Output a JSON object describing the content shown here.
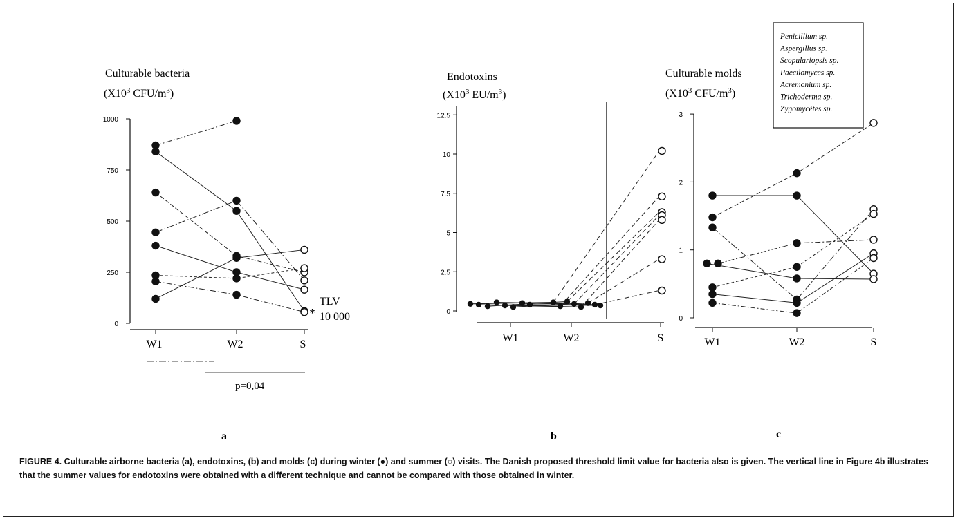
{
  "figure": {
    "caption": "FIGURE 4.   Culturable airborne bacteria (a), endotoxins, (b) and molds (c) during winter (●) and summer (○) visits. The Danish proposed threshold limit value for bacteria also is given. The vertical line in Figure 4b illustrates that the summer values for endotoxins were obtained with a different technique and cannot be compared with those obtained in winter."
  },
  "chart_data": [
    {
      "type": "line",
      "panel_label": "a",
      "title": "Culturable bacteria",
      "ylabel": "(X10³ CFU/m³)",
      "categories": [
        "W1",
        "W2",
        "S"
      ],
      "yticks": [
        "0",
        "250",
        "500",
        "750",
        "1000"
      ],
      "ylim": [
        0,
        1000
      ],
      "series": [
        {
          "values": [
            870,
            990,
            null
          ]
        },
        {
          "values": [
            840,
            550,
            60
          ]
        },
        {
          "values": [
            640,
            330,
            250
          ]
        },
        {
          "values": [
            445,
            600,
            210
          ]
        },
        {
          "values": [
            380,
            250,
            165
          ]
        },
        {
          "values": [
            235,
            220,
            270
          ]
        },
        {
          "values": [
            205,
            140,
            55
          ]
        },
        {
          "values": [
            120,
            320,
            360
          ]
        }
      ],
      "annotations": {
        "tlv_label": "TLV",
        "tlv_value": "10 000",
        "tlv_marker": "*",
        "p_value": "p=0,04"
      }
    },
    {
      "type": "line",
      "panel_label": "b",
      "title": "Endotoxins",
      "ylabel": "(X10³ EU/m³)",
      "categories": [
        "W1",
        "W2",
        "S"
      ],
      "yticks": [
        "0",
        "2.5",
        "5",
        "7.5",
        "10",
        "12.5"
      ],
      "ylim": [
        0,
        12.5
      ],
      "winter_w1": [
        0.45,
        0.4,
        0.3,
        0.55,
        0.35,
        0.25,
        0.5,
        0.4
      ],
      "winter_w2": [
        0.55,
        0.3,
        0.6,
        0.45,
        0.25,
        0.5,
        0.4,
        0.35
      ],
      "summer": [
        10.2,
        7.3,
        6.3,
        6.1,
        5.8,
        3.3,
        1.3
      ],
      "note": "summer values obtained with a different technique"
    },
    {
      "type": "line",
      "panel_label": "c",
      "title": "Culturable molds",
      "ylabel": "(X10³ CFU/m³)",
      "categories": [
        "W1",
        "W2",
        "S"
      ],
      "yticks": [
        "0",
        "1",
        "2",
        "3"
      ],
      "ylim": [
        0,
        3
      ],
      "legend": [
        "Penicillium sp.",
        "Aspergillus sp.",
        "Scopulariopsis sp.",
        "Paecilomyces sp.",
        "Acremonium sp.",
        "Trichoderma sp.",
        "Zygomycètes sp."
      ],
      "series": [
        {
          "values": [
            1.8,
            1.8,
            0.65
          ]
        },
        {
          "values": [
            1.48,
            2.13,
            2.87
          ]
        },
        {
          "values": [
            1.33,
            0.27,
            1.6
          ]
        },
        {
          "values": [
            0.8,
            0.58,
            0.57
          ]
        },
        {
          "values": [
            0.45,
            0.75,
            1.53
          ]
        },
        {
          "values": [
            0.8,
            1.1,
            1.15
          ]
        },
        {
          "values": [
            0.35,
            0.22,
            0.95
          ]
        },
        {
          "values": [
            0.22,
            0.07,
            0.88
          ]
        }
      ]
    }
  ]
}
